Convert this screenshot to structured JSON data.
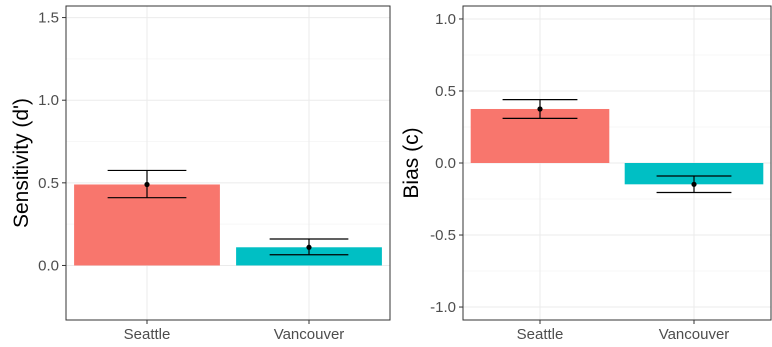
{
  "chart_data": [
    {
      "type": "bar",
      "categories": [
        "Seattle",
        "Vancouver"
      ],
      "values": [
        0.49,
        0.11
      ],
      "error_low": [
        0.41,
        0.065
      ],
      "error_high": [
        0.575,
        0.16
      ],
      "colors": [
        "#F8766D",
        "#00BFC4"
      ],
      "ylabel": "Sensitivity (d')",
      "xlabel": "",
      "ylim": [
        -0.33,
        1.57
      ],
      "yticks": [
        0.0,
        0.5,
        1.0,
        1.5
      ],
      "ytick_labels": [
        "0.0",
        "0.5",
        "1.0",
        "1.5"
      ],
      "grid": true
    },
    {
      "type": "bar",
      "categories": [
        "Seattle",
        "Vancouver"
      ],
      "values": [
        0.375,
        -0.148
      ],
      "error_low": [
        0.31,
        -0.205
      ],
      "error_high": [
        0.44,
        -0.09
      ],
      "colors": [
        "#F8766D",
        "#00BFC4"
      ],
      "ylabel": "Bias (c)",
      "xlabel": "",
      "ylim": [
        -1.09,
        1.09
      ],
      "yticks": [
        -1.0,
        -0.5,
        0.0,
        0.5,
        1.0
      ],
      "ytick_labels": [
        "-1.0",
        "-0.5",
        "0.0",
        "0.5",
        "1.0"
      ],
      "grid": true
    }
  ]
}
